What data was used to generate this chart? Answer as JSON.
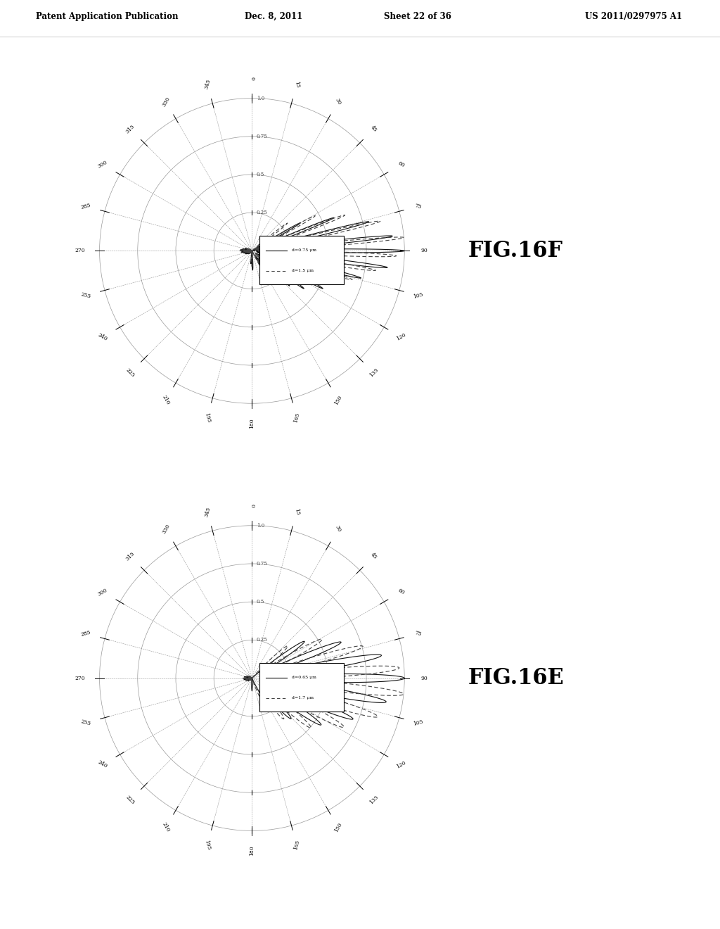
{
  "background_color": "#ffffff",
  "header_text": "Patent Application Publication",
  "header_date": "Dec. 8, 2011",
  "header_sheet": "Sheet 22 of 36",
  "header_patent": "US 2011/0297975 A1",
  "fig_top_label": "FIG.16F",
  "fig_bottom_label": "FIG.16E",
  "angle_labels": [
    0,
    15,
    30,
    45,
    60,
    75,
    90,
    105,
    120,
    135,
    150,
    165,
    180,
    195,
    210,
    225,
    240,
    255,
    270,
    285,
    300,
    315,
    330,
    345
  ],
  "top_legend_line1": "d=0.75 μm",
  "top_legend_line2": "d=1.5 μm",
  "bottom_legend_line1": "d=0.65 μm",
  "bottom_legend_line2": "d=1.7 μm",
  "grid_color": "#999999",
  "solid_line_color": "#111111",
  "dashed_line_color": "#444444",
  "dotted_line_color": "#777777",
  "radial_labels": [
    "0.25",
    "0.5",
    "0.75",
    "1"
  ]
}
